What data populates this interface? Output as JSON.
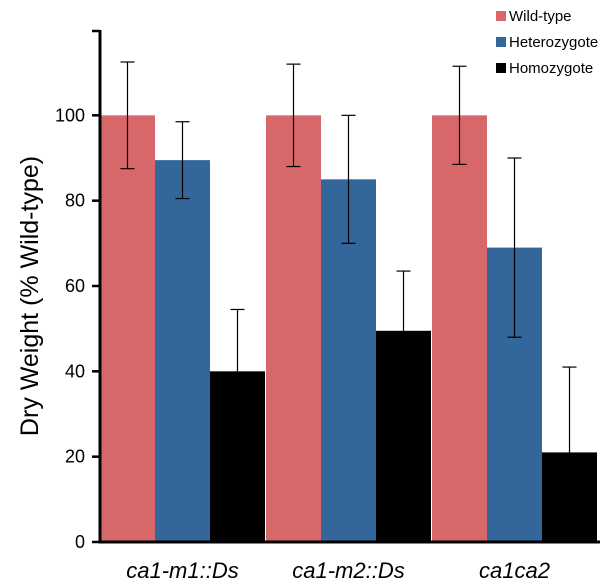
{
  "chart_data": {
    "type": "bar",
    "ylabel": "Dry Weight (% Wild-type)",
    "ylim": [
      0,
      120
    ],
    "yticks": [
      0,
      20,
      40,
      60,
      80,
      100
    ],
    "categories": [
      "ca1-m1::Ds",
      "ca1-m2::Ds",
      "ca1ca2"
    ],
    "series": [
      {
        "name": "Wild-type",
        "color": "#d8676a",
        "values": [
          100,
          100,
          100
        ],
        "errors": [
          12.5,
          12,
          11.5
        ]
      },
      {
        "name": "Heterozygote",
        "color": "#33669a",
        "values": [
          89.5,
          85,
          69
        ],
        "errors": [
          9,
          15,
          21
        ]
      },
      {
        "name": "Homozygote",
        "color": "#000000",
        "values": [
          40,
          49.5,
          21
        ],
        "errors": [
          14.5,
          14,
          20
        ]
      }
    ],
    "legend_position": "top-right",
    "grid": false
  }
}
